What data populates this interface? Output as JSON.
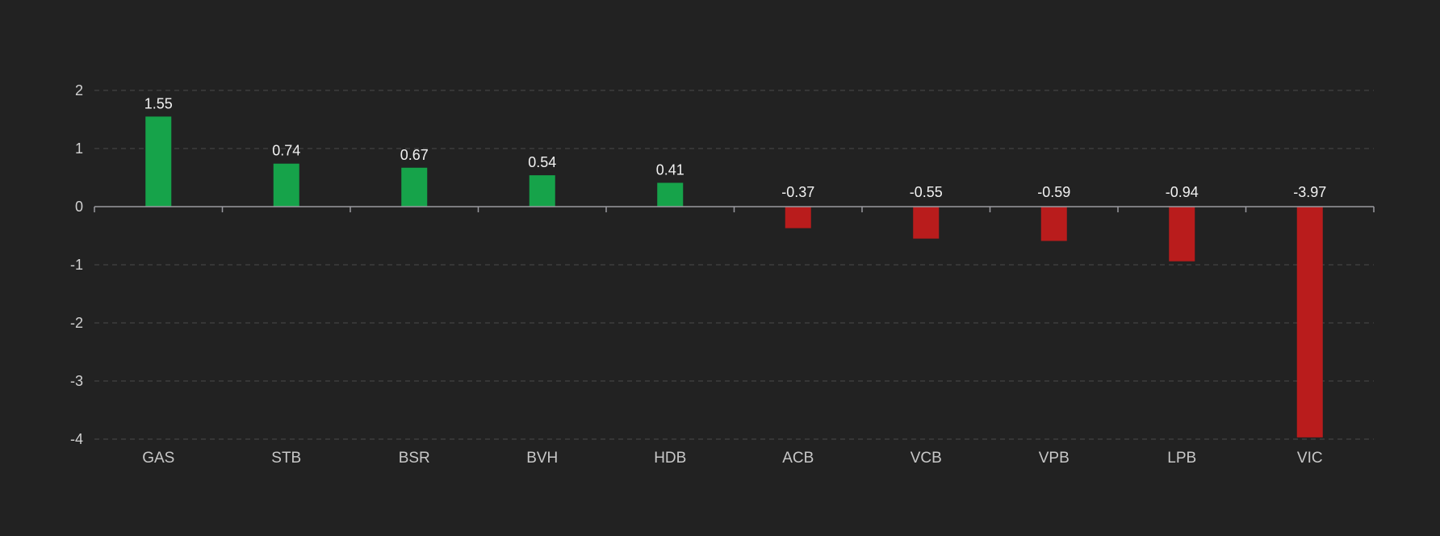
{
  "chart_data": {
    "type": "bar",
    "categories": [
      "GAS",
      "STB",
      "BSR",
      "BVH",
      "HDB",
      "ACB",
      "VCB",
      "VPB",
      "LPB",
      "VIC"
    ],
    "values": [
      1.55,
      0.74,
      0.67,
      0.54,
      0.41,
      -0.37,
      -0.55,
      -0.59,
      -0.94,
      -3.97
    ],
    "data_labels": [
      "1.55",
      "0.74",
      "0.67",
      "0.54",
      "0.41",
      "-0.37",
      "-0.55",
      "-0.59",
      "-0.94",
      "-3.97"
    ],
    "y_ticks": [
      2,
      1,
      0,
      -1,
      -2,
      -3,
      -4
    ],
    "ylim": [
      -4,
      2
    ],
    "grid": true,
    "colors": {
      "positive": "#16a34a",
      "negative": "#b91c1c",
      "background": "#222222"
    }
  }
}
